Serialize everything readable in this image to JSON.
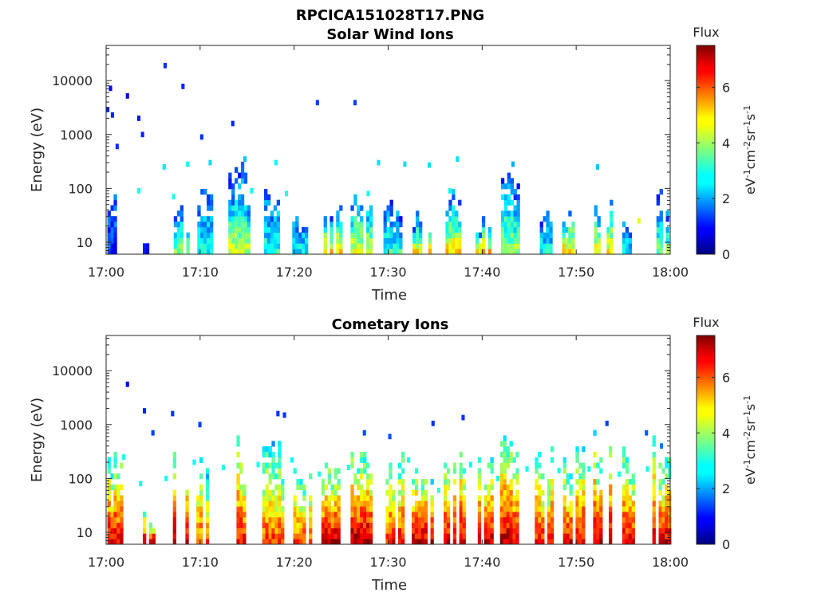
{
  "figure": {
    "title": "RPCICA151028T17.PNG"
  },
  "chart_data": [
    {
      "type": "heatmap",
      "title": "Solar Wind Ions",
      "xlabel": "Time",
      "ylabel": "Energy (eV)",
      "x_ticks": [
        "17:00",
        "17:10",
        "17:20",
        "17:30",
        "17:40",
        "17:50",
        "18:00"
      ],
      "x_range_minutes": [
        0,
        60
      ],
      "y_scale": "log",
      "y_ticks": [
        "10",
        "100",
        "1000",
        "10000"
      ],
      "y_range": [
        6,
        45000
      ],
      "colorbar": {
        "title": "Flux",
        "label": "eV-1cm-2sr-1s-1",
        "range": [
          0,
          7.5
        ],
        "ticks": [
          "0",
          "2",
          "4",
          "6"
        ],
        "colormap": "jet"
      },
      "bursts": [
        {
          "t": 0.6,
          "ch": 1.2,
          "cl": 0.6,
          "top": 80,
          "w": 1.6
        },
        {
          "t": 4.3,
          "ch": 0.8,
          "cl": 0.6,
          "top": 16,
          "w": 0.8
        },
        {
          "t": 7.9,
          "ch": 4.0,
          "cl": 0.5,
          "top": 60,
          "w": 1.4
        },
        {
          "t": 10.5,
          "ch": 2.8,
          "cl": 0.6,
          "top": 160,
          "w": 1.6
        },
        {
          "t": 14.0,
          "ch": 4.3,
          "cl": 0.4,
          "top": 320,
          "w": 2.0
        },
        {
          "t": 17.6,
          "ch": 3.0,
          "cl": 0.6,
          "top": 140,
          "w": 1.6
        },
        {
          "t": 20.6,
          "ch": 2.8,
          "cl": 0.7,
          "top": 35,
          "w": 1.6
        },
        {
          "t": 23.8,
          "ch": 5.0,
          "cl": 0.6,
          "top": 50,
          "w": 2.0
        },
        {
          "t": 27.0,
          "ch": 4.5,
          "cl": 0.6,
          "top": 90,
          "w": 2.0
        },
        {
          "t": 30.4,
          "ch": 3.2,
          "cl": 0.6,
          "top": 70,
          "w": 1.8
        },
        {
          "t": 33.5,
          "ch": 5.0,
          "cl": 0.5,
          "top": 40,
          "w": 1.8
        },
        {
          "t": 36.9,
          "ch": 5.0,
          "cl": 0.6,
          "top": 150,
          "w": 1.6
        },
        {
          "t": 40.1,
          "ch": 5.0,
          "cl": 0.6,
          "top": 30,
          "w": 1.6
        },
        {
          "t": 42.9,
          "ch": 4.0,
          "cl": 0.6,
          "top": 280,
          "w": 1.8
        },
        {
          "t": 46.5,
          "ch": 2.8,
          "cl": 0.6,
          "top": 60,
          "w": 1.4
        },
        {
          "t": 49.4,
          "ch": 5.0,
          "cl": 0.6,
          "top": 45,
          "w": 1.8
        },
        {
          "t": 52.8,
          "ch": 5.0,
          "cl": 0.6,
          "top": 60,
          "w": 1.8
        },
        {
          "t": 55.6,
          "ch": 2.8,
          "cl": 0.6,
          "top": 35,
          "w": 1.4
        },
        {
          "t": 59.0,
          "ch": 3.6,
          "cl": 0.6,
          "top": 100,
          "w": 1.6
        }
      ],
      "points": [
        {
          "t": 0.3,
          "e": 7200,
          "v": 1.0
        },
        {
          "t": 0.0,
          "e": 2900,
          "v": 1.2
        },
        {
          "t": 0.5,
          "e": 2300,
          "v": 1.2
        },
        {
          "t": 1.0,
          "e": 600,
          "v": 1.3
        },
        {
          "t": 2.1,
          "e": 5200,
          "v": 1.0
        },
        {
          "t": 3.3,
          "e": 2000,
          "v": 1.1
        },
        {
          "t": 3.7,
          "e": 1000,
          "v": 1.2
        },
        {
          "t": 6.1,
          "e": 19000,
          "v": 1.3
        },
        {
          "t": 8.0,
          "e": 7800,
          "v": 1.2
        },
        {
          "t": 10.0,
          "e": 900,
          "v": 1.3
        },
        {
          "t": 13.3,
          "e": 1600,
          "v": 1.2
        },
        {
          "t": 22.3,
          "e": 3900,
          "v": 1.4
        },
        {
          "t": 26.3,
          "e": 3900,
          "v": 1.4
        },
        {
          "t": 6.0,
          "e": 250,
          "v": 2.6
        },
        {
          "t": 8.5,
          "e": 280,
          "v": 2.8
        },
        {
          "t": 10.9,
          "e": 300,
          "v": 2.6
        },
        {
          "t": 14.6,
          "e": 350,
          "v": 2.4
        },
        {
          "t": 17.9,
          "e": 300,
          "v": 2.8
        },
        {
          "t": 28.8,
          "e": 300,
          "v": 2.6
        },
        {
          "t": 31.6,
          "e": 280,
          "v": 2.6
        },
        {
          "t": 34.2,
          "e": 270,
          "v": 2.6
        },
        {
          "t": 37.2,
          "e": 350,
          "v": 2.6
        },
        {
          "t": 43.1,
          "e": 280,
          "v": 2.2
        },
        {
          "t": 52.1,
          "e": 250,
          "v": 2.4
        },
        {
          "t": 3.3,
          "e": 90,
          "v": 3.0
        },
        {
          "t": 7.0,
          "e": 70,
          "v": 3.0
        },
        {
          "t": 15.3,
          "e": 90,
          "v": 3.0
        },
        {
          "t": 19.0,
          "e": 80,
          "v": 3.0
        },
        {
          "t": 27.7,
          "e": 80,
          "v": 3.0
        },
        {
          "t": 36.4,
          "e": 90,
          "v": 3.0
        },
        {
          "t": 56.5,
          "e": 25,
          "v": 4.5
        }
      ]
    },
    {
      "type": "heatmap",
      "title": "Cometary Ions",
      "xlabel": "Time",
      "ylabel": "Energy (eV)",
      "x_ticks": [
        "17:00",
        "17:10",
        "17:20",
        "17:30",
        "17:40",
        "17:50",
        "18:00"
      ],
      "x_range_minutes": [
        0,
        60
      ],
      "y_scale": "log",
      "y_ticks": [
        "10",
        "100",
        "1000",
        "10000"
      ],
      "y_range": [
        6,
        45000
      ],
      "colorbar": {
        "title": "Flux",
        "label": "eV-1cm-2sr-1s-1",
        "range": [
          0,
          7.5
        ],
        "ticks": [
          "0",
          "2",
          "4",
          "6"
        ],
        "colormap": "jet"
      },
      "bursts": [
        {
          "t": 0.7,
          "ch": 6.9,
          "cl": 1.2,
          "top": 300,
          "w": 1.8
        },
        {
          "t": 4.4,
          "ch": 7.0,
          "cl": 1.0,
          "top": 30,
          "w": 1.0
        },
        {
          "t": 7.9,
          "ch": 7.0,
          "cl": 1.2,
          "top": 550,
          "w": 1.6
        },
        {
          "t": 10.6,
          "ch": 6.0,
          "cl": 1.0,
          "top": 500,
          "w": 2.0
        },
        {
          "t": 14.2,
          "ch": 6.6,
          "cl": 1.2,
          "top": 600,
          "w": 2.0
        },
        {
          "t": 17.6,
          "ch": 6.2,
          "cl": 1.0,
          "top": 500,
          "w": 2.0
        },
        {
          "t": 20.8,
          "ch": 6.0,
          "cl": 1.2,
          "top": 150,
          "w": 1.8
        },
        {
          "t": 24.0,
          "ch": 7.2,
          "cl": 1.2,
          "top": 300,
          "w": 2.2
        },
        {
          "t": 27.1,
          "ch": 7.2,
          "cl": 1.2,
          "top": 600,
          "w": 2.2
        },
        {
          "t": 30.4,
          "ch": 6.5,
          "cl": 1.2,
          "top": 300,
          "w": 2.0
        },
        {
          "t": 33.5,
          "ch": 7.0,
          "cl": 1.2,
          "top": 250,
          "w": 2.0
        },
        {
          "t": 36.9,
          "ch": 7.0,
          "cl": 1.2,
          "top": 500,
          "w": 2.0
        },
        {
          "t": 40.1,
          "ch": 7.0,
          "cl": 1.2,
          "top": 250,
          "w": 1.8
        },
        {
          "t": 42.9,
          "ch": 7.0,
          "cl": 1.2,
          "top": 650,
          "w": 2.0
        },
        {
          "t": 46.5,
          "ch": 6.5,
          "cl": 1.2,
          "top": 350,
          "w": 1.8
        },
        {
          "t": 49.6,
          "ch": 6.8,
          "cl": 1.2,
          "top": 350,
          "w": 2.0
        },
        {
          "t": 52.8,
          "ch": 7.0,
          "cl": 1.2,
          "top": 1000,
          "w": 2.0
        },
        {
          "t": 55.8,
          "ch": 6.8,
          "cl": 1.2,
          "top": 350,
          "w": 1.8
        },
        {
          "t": 59.0,
          "ch": 6.8,
          "cl": 1.2,
          "top": 600,
          "w": 1.8
        }
      ],
      "points": [
        {
          "t": 2.1,
          "e": 5600,
          "v": 1.0
        },
        {
          "t": 3.9,
          "e": 1800,
          "v": 1.2
        },
        {
          "t": 4.8,
          "e": 700,
          "v": 1.4
        },
        {
          "t": 6.9,
          "e": 1600,
          "v": 1.3
        },
        {
          "t": 9.8,
          "e": 1000,
          "v": 1.4
        },
        {
          "t": 18.1,
          "e": 1600,
          "v": 1.3
        },
        {
          "t": 18.8,
          "e": 1500,
          "v": 1.3
        },
        {
          "t": 27.3,
          "e": 700,
          "v": 1.5
        },
        {
          "t": 30.0,
          "e": 600,
          "v": 1.5
        },
        {
          "t": 34.6,
          "e": 1050,
          "v": 1.3
        },
        {
          "t": 37.8,
          "e": 1350,
          "v": 1.3
        },
        {
          "t": 53.1,
          "e": 1050,
          "v": 1.4
        },
        {
          "t": 57.3,
          "e": 700,
          "v": 1.6
        },
        {
          "t": 58.9,
          "e": 400,
          "v": 1.8
        },
        {
          "t": 1.7,
          "e": 250,
          "v": 3.0
        },
        {
          "t": 3.5,
          "e": 80,
          "v": 3.0
        },
        {
          "t": 6.2,
          "e": 100,
          "v": 2.8
        },
        {
          "t": 9.2,
          "e": 200,
          "v": 2.8
        },
        {
          "t": 12.3,
          "e": 160,
          "v": 3.0
        },
        {
          "t": 16.0,
          "e": 180,
          "v": 3.0
        },
        {
          "t": 19.6,
          "e": 220,
          "v": 2.8
        },
        {
          "t": 22.5,
          "e": 120,
          "v": 3.0
        },
        {
          "t": 25.6,
          "e": 160,
          "v": 3.0
        },
        {
          "t": 32.0,
          "e": 220,
          "v": 2.8
        },
        {
          "t": 35.2,
          "e": 60,
          "v": 3.2
        },
        {
          "t": 38.6,
          "e": 180,
          "v": 2.8
        },
        {
          "t": 41.5,
          "e": 100,
          "v": 3.0
        },
        {
          "t": 44.6,
          "e": 150,
          "v": 3.0
        },
        {
          "t": 48.0,
          "e": 140,
          "v": 3.0
        },
        {
          "t": 51.2,
          "e": 150,
          "v": 3.0
        },
        {
          "t": 54.4,
          "e": 120,
          "v": 3.0
        },
        {
          "t": 57.4,
          "e": 150,
          "v": 3.0
        }
      ]
    }
  ]
}
